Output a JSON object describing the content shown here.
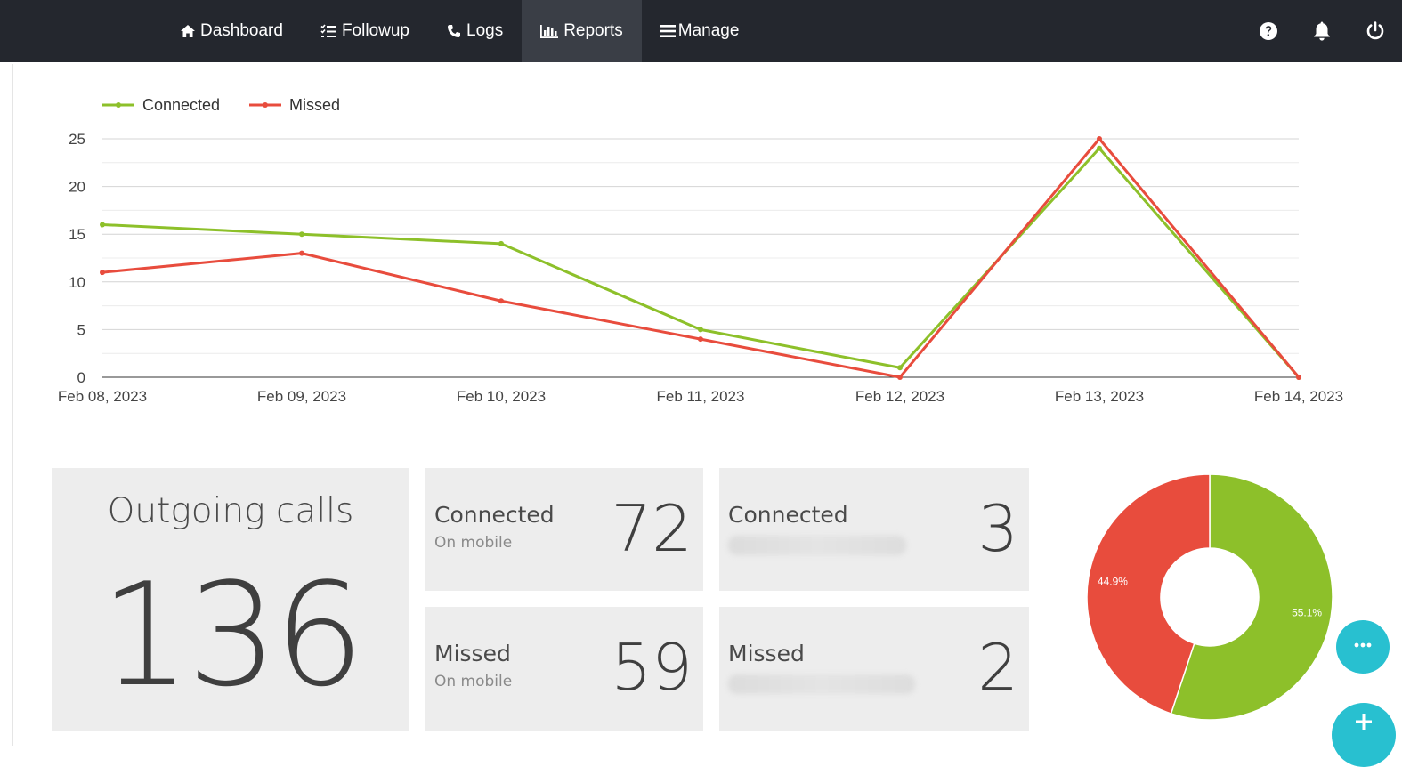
{
  "nav": {
    "items": [
      {
        "label": "Dashboard",
        "icon": "home-icon",
        "active": false
      },
      {
        "label": "Followup",
        "icon": "tasks-icon",
        "active": false
      },
      {
        "label": "Logs",
        "icon": "phone-icon",
        "active": false
      },
      {
        "label": "Reports",
        "icon": "bar-chart-icon",
        "active": true
      },
      {
        "label": "Manage",
        "icon": "menu-icon",
        "active": false
      }
    ],
    "right_icons": [
      "help-icon",
      "bell-icon",
      "power-icon"
    ]
  },
  "chart_data": {
    "type": "line",
    "title": "",
    "xlabel": "",
    "ylabel": "",
    "categories": [
      "Feb 08, 2023",
      "Feb 09, 2023",
      "Feb 10, 2023",
      "Feb 11, 2023",
      "Feb 12, 2023",
      "Feb 13, 2023",
      "Feb 14, 2023"
    ],
    "ylim": [
      0,
      25
    ],
    "yticks": [
      0,
      5,
      10,
      15,
      20,
      25
    ],
    "grid": true,
    "legend_position": "top-left",
    "series": [
      {
        "name": "Connected",
        "color": "#8dc02a",
        "values": [
          16,
          15,
          14,
          5,
          1,
          24,
          0
        ]
      },
      {
        "name": "Missed",
        "color": "#e84c3d",
        "values": [
          11,
          13,
          8,
          4,
          0,
          25,
          0
        ]
      }
    ]
  },
  "summary": {
    "title": "Outgoing calls",
    "total": "136",
    "cards": [
      {
        "label": "Connected",
        "sub": "On mobile",
        "value": "72"
      },
      {
        "label": "Connected",
        "sub": "",
        "value": "3"
      },
      {
        "label": "Missed",
        "sub": "On mobile",
        "value": "59"
      },
      {
        "label": "Missed",
        "sub": "",
        "value": "2"
      }
    ]
  },
  "donut": {
    "type": "pie",
    "slices": [
      {
        "label": "55.1%",
        "value": 55.1,
        "color": "#8dc02a"
      },
      {
        "label": "44.9%",
        "value": 44.9,
        "color": "#e84c3d"
      }
    ]
  },
  "fabs": {
    "chat_icon": "chat-icon",
    "add_icon": "plus-icon",
    "accent": "#28c0d0"
  }
}
